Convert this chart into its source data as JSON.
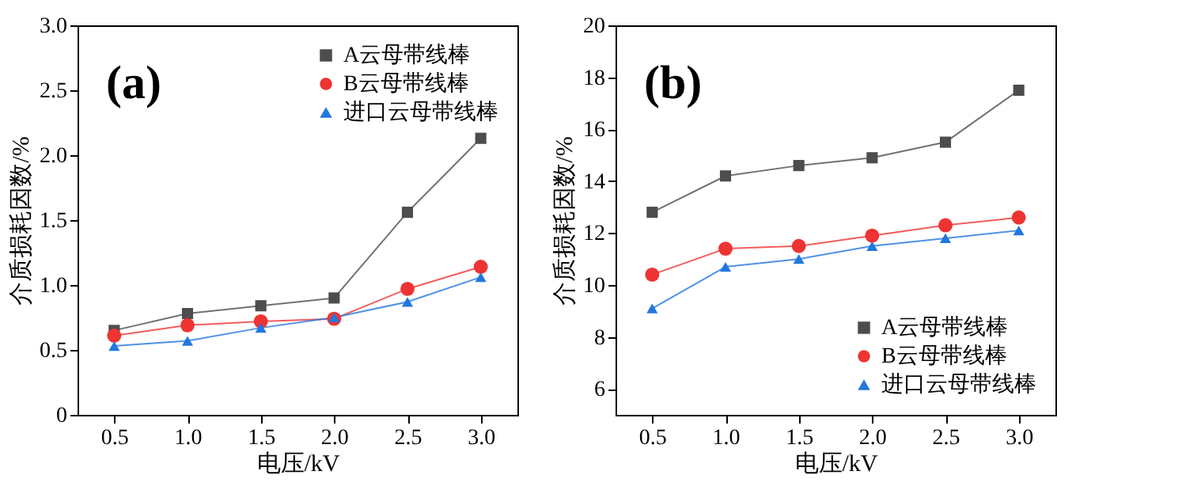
{
  "chart_data": [
    {
      "type": "line",
      "xlabel": "电压/kV",
      "ylabel": "介质损耗因数/%",
      "annotations": [
        "(a)"
      ],
      "legend": "top right",
      "x": [
        0.5,
        1.0,
        1.5,
        2.0,
        2.5,
        3.0
      ],
      "xlim": [
        0.25,
        3.25
      ],
      "xticks": [
        0.5,
        {
          "value": 1,
          "label": "1.0"
        },
        1.5,
        {
          "value": 2,
          "label": "2.0"
        },
        2.5,
        {
          "value": 3,
          "label": "3.0"
        }
      ],
      "ylim": [
        0,
        3
      ],
      "yticks": [
        0,
        0.5,
        {
          "value": 1,
          "label": "1.0"
        },
        1.5,
        {
          "value": 2,
          "label": "2.0"
        },
        2.5,
        {
          "value": 3,
          "label": "3.0"
        }
      ],
      "series": [
        {
          "name": "A云母带线棒",
          "color": "#4d4d4d",
          "marker": "square",
          "values": [
            0.65,
            0.78,
            0.84,
            0.9,
            1.56,
            2.13
          ]
        },
        {
          "name": "B云母带线棒",
          "color": "#ee3333",
          "marker": "circle",
          "values": [
            0.61,
            0.69,
            0.72,
            0.74,
            0.97,
            1.14
          ]
        },
        {
          "name": "进口云母带线棒",
          "color": "#2277dd",
          "marker": "triangle",
          "values": [
            0.53,
            0.57,
            0.67,
            0.75,
            0.87,
            1.06
          ]
        }
      ]
    },
    {
      "type": "line",
      "xlabel": "电压/kV",
      "ylabel": "介质损耗因数/%",
      "annotations": [
        "(b)"
      ],
      "legend": "bottom right",
      "x": [
        0.5,
        1.0,
        1.5,
        2.0,
        2.5,
        3.0
      ],
      "xlim": [
        0.25,
        3.25
      ],
      "xticks": [
        0.5,
        {
          "value": 1,
          "label": "1.0"
        },
        1.5,
        {
          "value": 2,
          "label": "2.0"
        },
        2.5,
        {
          "value": 3,
          "label": "3.0"
        }
      ],
      "ylim": [
        5,
        20
      ],
      "yticks": [
        6,
        8,
        10,
        12,
        14,
        16,
        18,
        20
      ],
      "series": [
        {
          "name": "A云母带线棒",
          "color": "#4d4d4d",
          "marker": "square",
          "values": [
            12.8,
            14.2,
            14.6,
            14.9,
            15.5,
            17.5
          ]
        },
        {
          "name": "B云母带线棒",
          "color": "#ee3333",
          "marker": "circle",
          "values": [
            10.4,
            11.4,
            11.5,
            11.9,
            12.3,
            12.6
          ]
        },
        {
          "name": "进口云母带线棒",
          "color": "#2277dd",
          "marker": "triangle",
          "values": [
            9.1,
            10.7,
            11.0,
            11.5,
            11.8,
            12.1
          ]
        }
      ]
    }
  ]
}
